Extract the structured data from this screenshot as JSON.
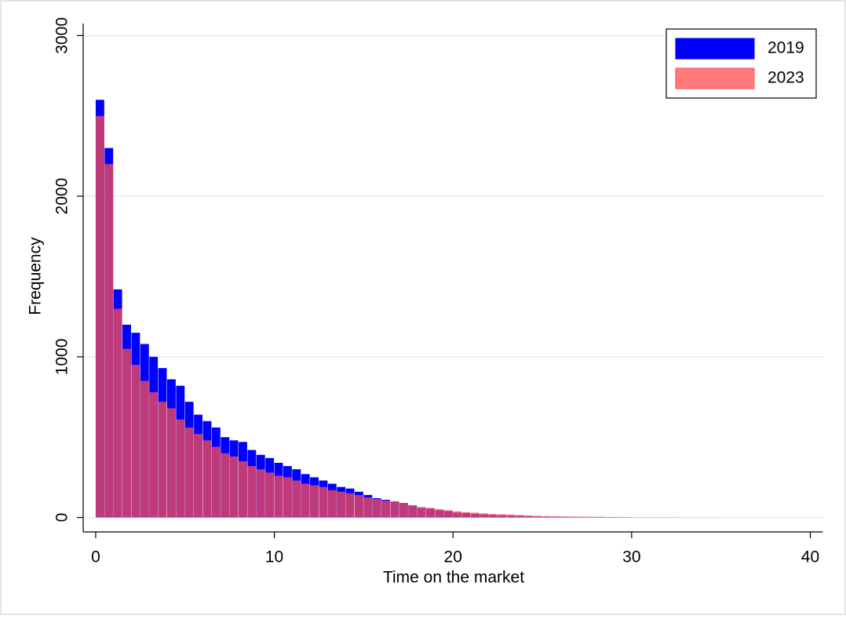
{
  "chart_data": {
    "type": "histogram",
    "x_label": "Time on the market",
    "y_label": "Frequency",
    "bins": [
      0,
      0.5,
      1,
      1.5,
      2,
      2.5,
      3,
      3.5,
      4,
      4.5,
      5,
      5.5,
      6,
      6.5,
      7,
      7.5,
      8,
      8.5,
      9,
      9.5,
      10,
      10.5,
      11,
      11.5,
      12,
      12.5,
      13,
      13.5,
      14,
      14.5,
      15,
      15.5,
      16,
      16.5,
      17,
      17.5,
      18,
      18.5,
      19,
      19.5,
      20,
      20.5,
      21,
      21.5,
      22,
      22.5,
      23,
      23.5,
      24,
      24.5,
      25,
      25.5,
      26,
      26.5,
      27,
      27.5,
      28,
      28.5,
      29,
      29.5,
      30,
      30.5,
      31,
      31.5,
      32,
      32.5,
      33,
      33.5,
      34,
      34.5,
      35
    ],
    "series": [
      {
        "name": "2019",
        "color": "#0000ff",
        "values": [
          2600,
          2300,
          1420,
          1200,
          1150,
          1080,
          1000,
          930,
          860,
          820,
          720,
          640,
          600,
          560,
          500,
          480,
          470,
          420,
          390,
          370,
          340,
          320,
          300,
          270,
          250,
          230,
          210,
          190,
          180,
          160,
          140,
          120,
          110,
          100,
          90,
          75,
          60,
          55,
          45,
          40,
          30,
          28,
          22,
          18,
          15,
          13,
          12,
          10,
          8,
          6,
          5,
          5,
          4,
          4,
          3,
          3,
          3,
          2,
          1,
          1,
          0,
          0,
          0,
          0,
          0,
          0,
          0,
          0,
          0,
          0
        ]
      },
      {
        "name": "2023",
        "color": "#ff4d4d",
        "values": [
          2500,
          2200,
          1300,
          1050,
          950,
          850,
          780,
          720,
          680,
          610,
          560,
          520,
          480,
          440,
          400,
          380,
          350,
          320,
          300,
          280,
          260,
          250,
          230,
          210,
          200,
          190,
          170,
          160,
          150,
          140,
          125,
          115,
          105,
          100,
          90,
          75,
          65,
          60,
          52,
          45,
          38,
          33,
          30,
          26,
          22,
          20,
          18,
          15,
          12,
          10,
          8,
          7,
          6,
          5,
          5,
          4,
          4,
          3,
          3,
          3,
          2,
          2,
          2,
          2,
          2,
          1,
          1,
          1,
          1,
          1
        ]
      }
    ],
    "xlim": [
      -0.7,
      40.7
    ],
    "ylim": [
      -90,
      3075
    ],
    "xticks": [
      0,
      10,
      20,
      30,
      40
    ],
    "yticks": [
      0,
      1000,
      2000,
      3000
    ],
    "grid": true,
    "legend": "upper right"
  }
}
